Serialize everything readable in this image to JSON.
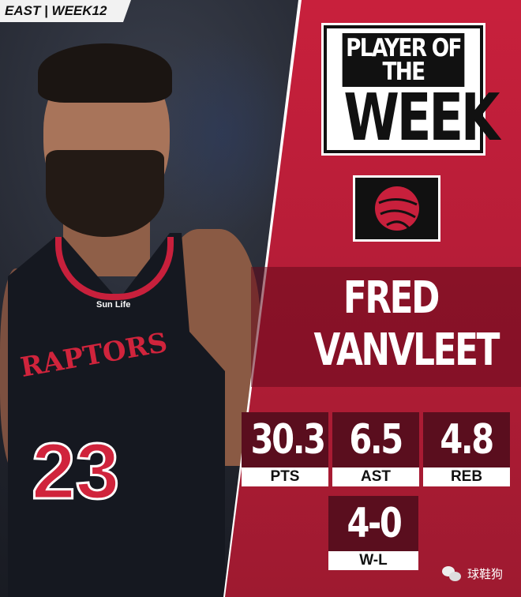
{
  "badge": "EAST | WEEK12",
  "title": {
    "line1": "PLAYER OF THE",
    "line2": "WEEK"
  },
  "team_logo": "raptors-basketball-claw-icon",
  "player": {
    "first": "FRED",
    "last": "VANVLEET"
  },
  "jersey": {
    "team": "RAPTORS",
    "number": "23",
    "sponsor": "Sun Life"
  },
  "stats": [
    {
      "value": "30.3",
      "label": "PTS"
    },
    {
      "value": "6.5",
      "label": "AST"
    },
    {
      "value": "4.8",
      "label": "REB"
    },
    {
      "value": "4-0",
      "label": "W-L"
    }
  ],
  "watermark": {
    "icon": "wechat-icon",
    "text": "球鞋狗"
  },
  "colors": {
    "red": "#c8203c",
    "dark": "#5a0e1e",
    "black": "#111111"
  }
}
